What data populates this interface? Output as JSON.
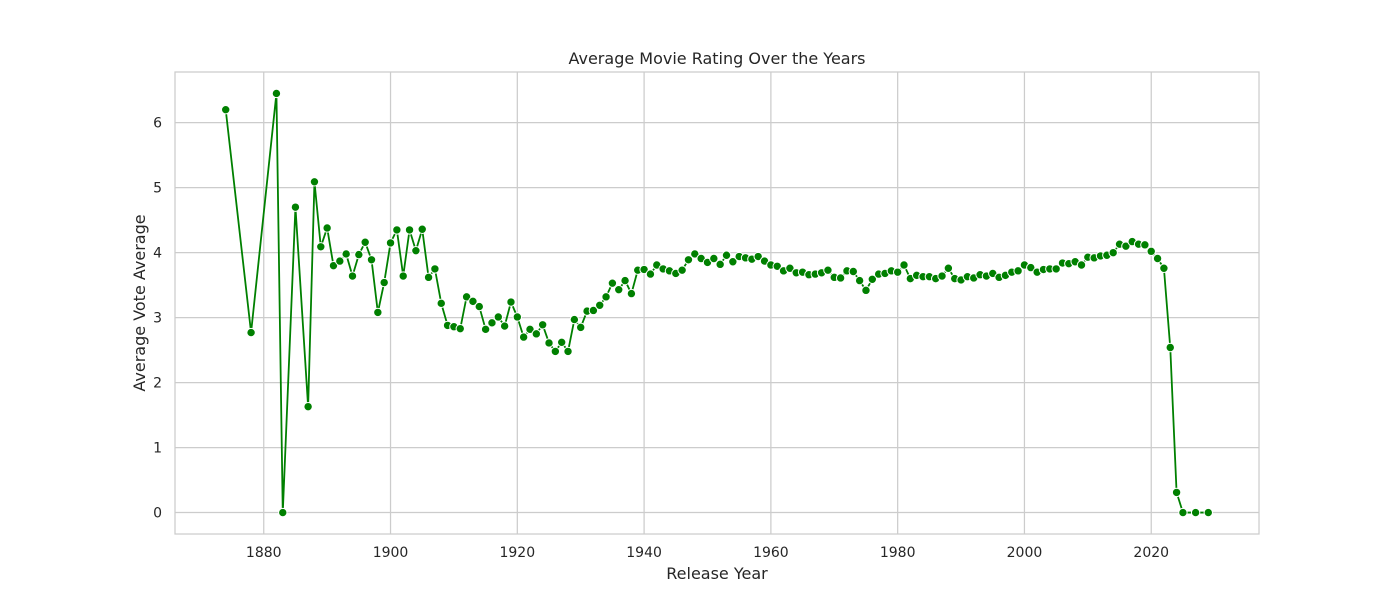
{
  "chart_data": {
    "type": "line",
    "title": "Average Movie Rating Over the Years",
    "xlabel": "Release Year",
    "ylabel": "Average Vote Average",
    "xlim": [
      1866,
      2037
    ],
    "ylim": [
      -0.33,
      6.78
    ],
    "xticks": [
      1880,
      1900,
      1920,
      1940,
      1960,
      1980,
      2000,
      2020
    ],
    "yticks": [
      0,
      1,
      2,
      3,
      4,
      5,
      6
    ],
    "grid": true,
    "line_color": "#008000",
    "marker": "circle",
    "series": [
      {
        "x": [
          1874,
          1878,
          1882,
          1883,
          1885,
          1887,
          1888,
          1889,
          1890,
          1891,
          1892,
          1893,
          1894,
          1895,
          1896,
          1897,
          1898,
          1899,
          1900,
          1901,
          1902,
          1903,
          1904,
          1905,
          1906,
          1907,
          1908,
          1909,
          1910,
          1911,
          1912,
          1913,
          1914,
          1915,
          1916,
          1917,
          1918,
          1919,
          1920,
          1921,
          1922,
          1923,
          1924,
          1925,
          1926,
          1927,
          1928,
          1929,
          1930,
          1931,
          1932,
          1933,
          1934,
          1935,
          1936,
          1937,
          1938,
          1939,
          1940,
          1941,
          1942,
          1943,
          1944,
          1945,
          1946,
          1947,
          1948,
          1949,
          1950,
          1951,
          1952,
          1953,
          1954,
          1955,
          1956,
          1957,
          1958,
          1959,
          1960,
          1961,
          1962,
          1963,
          1964,
          1965,
          1966,
          1967,
          1968,
          1969,
          1970,
          1971,
          1972,
          1973,
          1974,
          1975,
          1976,
          1977,
          1978,
          1979,
          1980,
          1981,
          1982,
          1983,
          1984,
          1985,
          1986,
          1987,
          1988,
          1989,
          1990,
          1991,
          1992,
          1993,
          1994,
          1995,
          1996,
          1997,
          1998,
          1999,
          2000,
          2001,
          2002,
          2003,
          2004,
          2005,
          2006,
          2007,
          2008,
          2009,
          2010,
          2011,
          2012,
          2013,
          2014,
          2015,
          2016,
          2017,
          2018,
          2019,
          2020,
          2021,
          2022,
          2023,
          2024,
          2025,
          2027,
          2029
        ],
        "y": [
          6.2,
          2.77,
          6.45,
          0.0,
          4.7,
          1.63,
          5.09,
          4.09,
          4.38,
          3.8,
          3.87,
          3.98,
          3.64,
          3.97,
          4.16,
          3.89,
          3.08,
          3.54,
          4.15,
          4.35,
          3.64,
          4.35,
          4.03,
          4.36,
          3.62,
          3.75,
          3.22,
          2.88,
          2.86,
          2.83,
          3.32,
          3.25,
          3.17,
          2.82,
          2.92,
          3.01,
          2.87,
          3.24,
          3.01,
          2.7,
          2.82,
          2.75,
          2.89,
          2.61,
          2.48,
          2.62,
          2.48,
          2.97,
          2.85,
          3.1,
          3.11,
          3.19,
          3.32,
          3.53,
          3.43,
          3.57,
          3.37,
          3.73,
          3.74,
          3.67,
          3.81,
          3.75,
          3.72,
          3.68,
          3.73,
          3.89,
          3.98,
          3.91,
          3.85,
          3.91,
          3.82,
          3.96,
          3.86,
          3.94,
          3.92,
          3.9,
          3.94,
          3.87,
          3.81,
          3.79,
          3.72,
          3.76,
          3.69,
          3.7,
          3.66,
          3.67,
          3.69,
          3.73,
          3.62,
          3.61,
          3.72,
          3.71,
          3.57,
          3.42,
          3.59,
          3.67,
          3.68,
          3.72,
          3.7,
          3.81,
          3.6,
          3.65,
          3.63,
          3.63,
          3.6,
          3.64,
          3.76,
          3.6,
          3.58,
          3.63,
          3.61,
          3.66,
          3.64,
          3.68,
          3.62,
          3.65,
          3.7,
          3.72,
          3.81,
          3.77,
          3.7,
          3.74,
          3.75,
          3.75,
          3.84,
          3.83,
          3.86,
          3.81,
          3.93,
          3.92,
          3.95,
          3.96,
          4.0,
          4.13,
          4.1,
          4.17,
          4.13,
          4.12,
          4.02,
          3.91,
          3.76,
          2.54,
          0.31,
          0.0,
          0.0,
          0.0
        ]
      }
    ]
  }
}
